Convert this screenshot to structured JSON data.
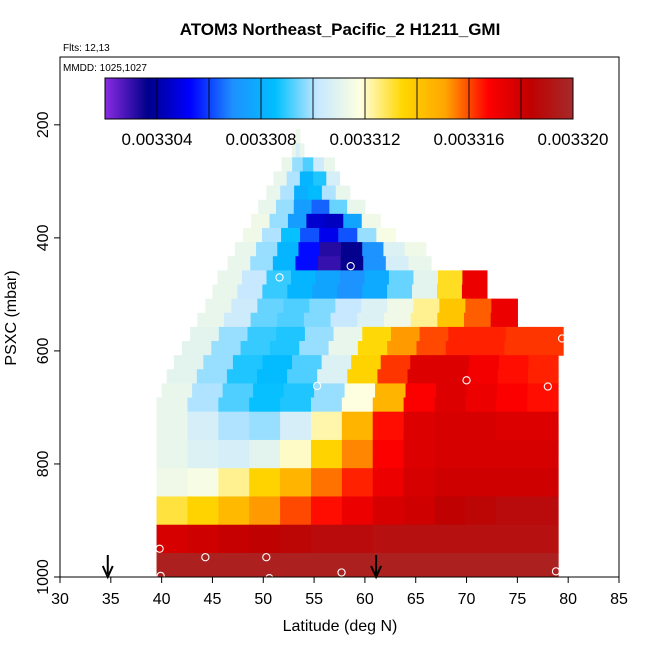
{
  "chart_data": {
    "type": "heatmap",
    "title": "ATOM3 Northeast_Pacific_2 H1211_GMI",
    "flights_label": "Flts: 12,13",
    "mmdd_label": "MMDD: 1025,1027",
    "xlabel": "Latitude (deg N)",
    "ylabel": "PSXC (mbar)",
    "xlim": [
      30,
      85
    ],
    "ylim": [
      1000,
      80
    ],
    "xticks": [
      "30",
      "35",
      "40",
      "45",
      "50",
      "55",
      "60",
      "65",
      "70",
      "75",
      "80",
      "85"
    ],
    "yticks": [
      "200",
      "400",
      "600",
      "800",
      "1000"
    ],
    "colorbar": {
      "min": 0.003302,
      "max": 0.00332,
      "tick_labels": [
        "0.003304",
        "0.003308",
        "0.003312",
        "0.003316",
        "0.003320"
      ],
      "colors": [
        "#8a2be2",
        "#00008b",
        "#0000ff",
        "#1e90ff",
        "#00bfff",
        "#c6e8ff",
        "#ffffe0",
        "#ffd700",
        "#ffa500",
        "#ff0000",
        "#c00000",
        "#a52a2a"
      ]
    },
    "bands": [
      {
        "p": 220,
        "lat_min": 53.2,
        "lat_max": 53.6,
        "v": [
          0.0033113,
          0.0033113
        ]
      },
      {
        "p": 245,
        "lat_min": 52.8,
        "lat_max": 54.0,
        "v": [
          0.0033112,
          0.0033106,
          0.0033112
        ]
      },
      {
        "p": 270,
        "lat_min": 51.8,
        "lat_max": 57.0,
        "v": [
          0.0033112,
          0.0033098,
          0.0033092,
          0.0033104,
          0.0033112
        ]
      },
      {
        "p": 295,
        "lat_min": 51.0,
        "lat_max": 57.5,
        "v": [
          0.0033112,
          0.00331,
          0.0033082,
          0.0033088,
          0.0033106
        ]
      },
      {
        "p": 320,
        "lat_min": 50.3,
        "lat_max": 58.5,
        "v": [
          0.0033112,
          0.00331,
          0.003308,
          0.0033084,
          0.00331,
          0.0033112
        ]
      },
      {
        "p": 345,
        "lat_min": 49.5,
        "lat_max": 60.0,
        "v": [
          0.0033112,
          0.0033098,
          0.0033074,
          0.0033064,
          0.0033094,
          0.0033112
        ]
      },
      {
        "p": 370,
        "lat_min": 48.8,
        "lat_max": 61.5,
        "v": [
          0.0033114,
          0.0033098,
          0.0033074,
          0.0033046,
          0.0033044,
          0.0033076,
          0.0033114
        ]
      },
      {
        "p": 395,
        "lat_min": 48.0,
        "lat_max": 63.0,
        "v": [
          0.0033114,
          0.00331,
          0.0033086,
          0.0033062,
          0.003305,
          0.0033062,
          0.0033098,
          0.0033116
        ]
      },
      {
        "p": 420,
        "lat_min": 47.2,
        "lat_max": 66.0,
        "v": [
          0.0033112,
          0.0033098,
          0.0033082,
          0.0033054,
          0.0033032,
          0.0033036,
          0.003307,
          0.0033108,
          0.0033114
        ]
      },
      {
        "p": 445,
        "lat_min": 46.5,
        "lat_max": 66.5,
        "v": [
          0.0033112,
          0.0033098,
          0.0033082,
          0.0033054,
          0.003303,
          0.0033036,
          0.003307,
          0.0033106,
          0.0033112
        ]
      },
      {
        "p": 470,
        "lat_min": 45.5,
        "lat_max": 72.0,
        "v": [
          0.0033112,
          0.0033102,
          0.003309,
          0.0033082,
          0.0033076,
          0.003307,
          0.0033078,
          0.0033094,
          0.003311,
          0.0033132,
          0.0033172
        ]
      },
      {
        "p": 495,
        "lat_min": 45.0,
        "lat_max": 72.0,
        "v": [
          0.0033112,
          0.0033102,
          0.003309,
          0.0033082,
          0.0033076,
          0.003307,
          0.0033078,
          0.0033094,
          0.003311,
          0.0033132,
          0.0033172
        ]
      },
      {
        "p": 520,
        "lat_min": 44.3,
        "lat_max": 75.0,
        "v": [
          0.0033112,
          0.0033104,
          0.0033094,
          0.0033092,
          0.0033096,
          0.0033102,
          0.0033108,
          0.0033114,
          0.0033124,
          0.003314,
          0.0033158,
          0.0033172
        ]
      },
      {
        "p": 545,
        "lat_min": 43.5,
        "lat_max": 75.0,
        "v": [
          0.0033112,
          0.0033104,
          0.0033094,
          0.0033092,
          0.0033096,
          0.0033102,
          0.0033108,
          0.0033114,
          0.0033124,
          0.003314,
          0.0033158,
          0.0033172
        ]
      },
      {
        "p": 570,
        "lat_min": 42.8,
        "lat_max": 79.5,
        "v": [
          0.003311,
          0.0033098,
          0.003309,
          0.0033088,
          0.0033098,
          0.0033112,
          0.0033134,
          0.0033152,
          0.003316,
          0.0033164,
          0.0033164,
          0.0033162,
          0.0033162
        ]
      },
      {
        "p": 595,
        "lat_min": 42.0,
        "lat_max": 79.5,
        "v": [
          0.003311,
          0.0033098,
          0.003309,
          0.0033088,
          0.0033098,
          0.0033112,
          0.0033134,
          0.0033152,
          0.003316,
          0.0033164,
          0.0033164,
          0.0033162,
          0.0033162
        ]
      },
      {
        "p": 620,
        "lat_min": 41.2,
        "lat_max": 79.0,
        "v": [
          0.003311,
          0.0033098,
          0.0033088,
          0.0033084,
          0.0033092,
          0.0033108,
          0.0033136,
          0.0033162,
          0.0033176,
          0.0033176,
          0.003317,
          0.0033166,
          0.0033164
        ]
      },
      {
        "p": 645,
        "lat_min": 40.5,
        "lat_max": 79.0,
        "v": [
          0.003311,
          0.0033098,
          0.0033088,
          0.0033084,
          0.0033092,
          0.0033108,
          0.0033136,
          0.0033162,
          0.0033176,
          0.0033176,
          0.003317,
          0.0033166,
          0.0033164
        ]
      },
      {
        "p": 670,
        "lat_min": 40.0,
        "lat_max": 79.0,
        "v": [
          0.0033112,
          0.00331,
          0.0033092,
          0.0033086,
          0.0033088,
          0.0033098,
          0.0033118,
          0.0033146,
          0.0033168,
          0.0033176,
          0.0033172,
          0.0033168,
          0.0033166
        ]
      },
      {
        "p": 695,
        "lat_min": 39.5,
        "lat_max": 79.0,
        "v": [
          0.0033112,
          0.00331,
          0.0033092,
          0.0033086,
          0.0033088,
          0.0033098,
          0.0033118,
          0.0033146,
          0.0033168,
          0.0033176,
          0.0033172,
          0.0033168,
          0.0033166
        ]
      },
      {
        "p": 720,
        "lat_min": 39.5,
        "lat_max": 79.0,
        "v": [
          0.0033112,
          0.0033106,
          0.00331,
          0.0033098,
          0.0033106,
          0.0033122,
          0.0033146,
          0.0033166,
          0.0033176,
          0.0033178,
          0.0033178,
          0.0033176,
          0.0033176
        ]
      },
      {
        "p": 745,
        "lat_min": 39.5,
        "lat_max": 79.0,
        "v": [
          0.0033112,
          0.0033106,
          0.00331,
          0.0033098,
          0.0033106,
          0.0033122,
          0.0033146,
          0.0033166,
          0.0033176,
          0.0033178,
          0.0033178,
          0.0033176,
          0.0033176
        ]
      },
      {
        "p": 770,
        "lat_min": 39.5,
        "lat_max": 79.0,
        "v": [
          0.0033112,
          0.0033108,
          0.0033106,
          0.003311,
          0.003312,
          0.0033136,
          0.0033154,
          0.0033168,
          0.0033176,
          0.0033178,
          0.0033178,
          0.0033178,
          0.0033178
        ]
      },
      {
        "p": 795,
        "lat_min": 39.5,
        "lat_max": 79.0,
        "v": [
          0.0033112,
          0.0033108,
          0.0033106,
          0.003311,
          0.003312,
          0.0033136,
          0.0033154,
          0.0033168,
          0.0033176,
          0.0033178,
          0.0033178,
          0.0033178,
          0.0033178
        ]
      },
      {
        "p": 820,
        "lat_min": 39.5,
        "lat_max": 79.0,
        "v": [
          0.0033114,
          0.0033116,
          0.0033124,
          0.0033136,
          0.0033146,
          0.0033156,
          0.0033164,
          0.0033172,
          0.0033178,
          0.003318,
          0.003318,
          0.003318,
          0.003318
        ]
      },
      {
        "p": 845,
        "lat_min": 39.5,
        "lat_max": 79.0,
        "v": [
          0.0033114,
          0.0033116,
          0.0033124,
          0.0033136,
          0.0033146,
          0.0033156,
          0.0033164,
          0.0033172,
          0.0033178,
          0.003318,
          0.003318,
          0.003318,
          0.003318
        ]
      },
      {
        "p": 870,
        "lat_min": 39.5,
        "lat_max": 79.0,
        "v": [
          0.003313,
          0.0033136,
          0.0033144,
          0.0033152,
          0.003316,
          0.0033166,
          0.0033172,
          0.0033178,
          0.003318,
          0.0033184,
          0.0033186,
          0.0033188,
          0.0033188
        ]
      },
      {
        "p": 895,
        "lat_min": 39.5,
        "lat_max": 79.0,
        "v": [
          0.003313,
          0.0033136,
          0.0033144,
          0.0033152,
          0.003316,
          0.0033166,
          0.0033172,
          0.0033178,
          0.003318,
          0.0033184,
          0.0033186,
          0.0033188,
          0.0033188
        ]
      },
      {
        "p": 920,
        "lat_min": 39.5,
        "lat_max": 79.0,
        "v": [
          0.0033178,
          0.003318,
          0.0033182,
          0.0033184,
          0.0033186,
          0.0033188,
          0.0033188,
          0.003319,
          0.003319,
          0.003319,
          0.003319,
          0.003319,
          0.003319
        ]
      },
      {
        "p": 945,
        "lat_min": 39.5,
        "lat_max": 79.0,
        "v": [
          0.0033178,
          0.003318,
          0.0033182,
          0.0033184,
          0.0033186,
          0.0033188,
          0.0033188,
          0.003319,
          0.003319,
          0.003319,
          0.003319,
          0.003319,
          0.003319
        ]
      },
      {
        "p": 970,
        "lat_min": 39.5,
        "lat_max": 79.0,
        "v": [
          0.0033196,
          0.0033196,
          0.0033196,
          0.0033196,
          0.0033196,
          0.0033196,
          0.0033196,
          0.0033196,
          0.0033196,
          0.0033196,
          0.0033196,
          0.0033196,
          0.0033196
        ]
      },
      {
        "p": 995,
        "lat_min": 39.5,
        "lat_max": 79.0,
        "v": [
          0.0033196,
          0.0033196,
          0.0033196,
          0.0033196,
          0.0033196,
          0.0033196,
          0.0033196,
          0.0033196,
          0.0033196,
          0.0033196,
          0.0033196,
          0.0033196,
          0.0033196
        ]
      }
    ],
    "points": [
      {
        "lat": 51.6,
        "p": 470
      },
      {
        "lat": 58.6,
        "p": 450
      },
      {
        "lat": 55.3,
        "p": 662
      },
      {
        "lat": 70.0,
        "p": 652
      },
      {
        "lat": 78.0,
        "p": 663
      },
      {
        "lat": 79.4,
        "p": 578
      },
      {
        "lat": 39.8,
        "p": 950
      },
      {
        "lat": 44.3,
        "p": 965
      },
      {
        "lat": 50.3,
        "p": 965
      },
      {
        "lat": 39.9,
        "p": 998
      },
      {
        "lat": 50.6,
        "p": 1002
      },
      {
        "lat": 57.7,
        "p": 992
      },
      {
        "lat": 78.8,
        "p": 990
      }
    ],
    "arrows": [
      {
        "lat": 34.7
      },
      {
        "lat": 61.1
      }
    ]
  }
}
